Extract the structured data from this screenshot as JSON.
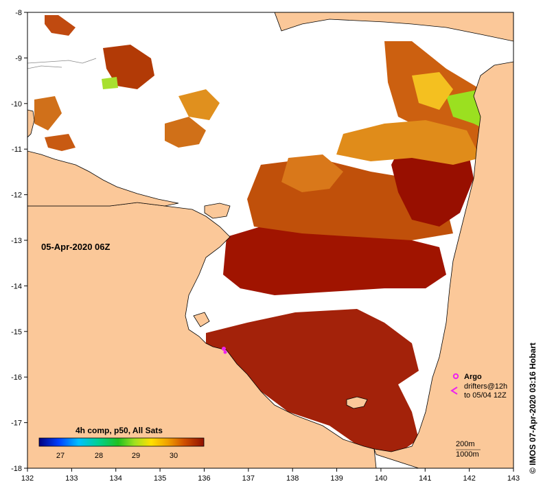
{
  "map": {
    "date_label": "05-Apr-2020 06Z",
    "credit": "© IMOS 07-Apr-2020 03:16 Hobart",
    "x_ticks": [
      "132",
      "133",
      "134",
      "135",
      "136",
      "137",
      "138",
      "139",
      "140",
      "141",
      "142",
      "143"
    ],
    "y_ticks": [
      "-8",
      "-9",
      "-10",
      "-11",
      "-12",
      "-13",
      "-14",
      "-15",
      "-16",
      "-17",
      "-18"
    ]
  },
  "colorbar": {
    "title": "4h comp, p50, All Sats",
    "labels": [
      "27",
      "28",
      "29",
      "30"
    ]
  },
  "legend": {
    "argo_label": "Argo",
    "drifters_label": "drifters@12h",
    "drifters_date": "to 05/04 12Z",
    "iso200": "200m",
    "iso1000": "1000m"
  },
  "colors": {
    "land": "#fbc899",
    "sst_dark": "#a01400",
    "sst_mid": "#c0500a",
    "sst_light": "#e08c1a",
    "sst_yellow": "#f4c020",
    "sst_green": "#9be020",
    "argo": "#ee22ee",
    "coast": "#000000"
  }
}
